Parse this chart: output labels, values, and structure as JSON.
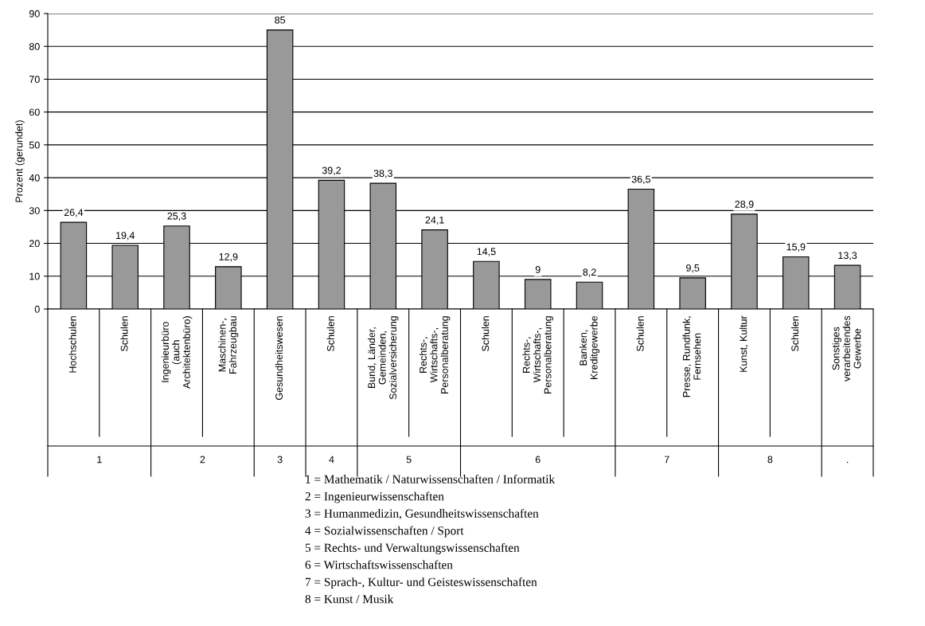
{
  "chart_data": {
    "type": "bar",
    "ylabel": "Prozent (gerundet)",
    "categories": [
      "Hochschulen",
      "Schulen",
      "Ingenieurbüro\n(auch\nArchitektenbüro)",
      "Maschinen-,\nFahrzeugbau",
      "Gesundheitswesen",
      "Schulen",
      "Bund, Länder,\nGemeinden,\nSozialversicherung",
      "Rechts-,\nWirtschafts-,\nPersonalberatung",
      "Schulen",
      "Rechts-,\nWirtschafts-,\nPersonalberatung",
      "Banken,\nKreditgewerbe",
      "Schulen",
      "Presse, Rundfunk,\nFernsehen",
      "Kunst, Kultur",
      "Schulen",
      "Sonstiges\nverarbeitendes\nGewerbe"
    ],
    "values": [
      26.4,
      19.4,
      25.3,
      12.9,
      85,
      39.2,
      38.3,
      24.1,
      14.5,
      9,
      8.2,
      36.5,
      9.5,
      28.9,
      15.9,
      13.3
    ],
    "value_labels": [
      "26,4",
      "19,4",
      "25,3",
      "12,9",
      "85",
      "39,2",
      "38,3",
      "24,1",
      "14,5",
      "9",
      "8,2",
      "36,5",
      "9,5",
      "28,9",
      "15,9",
      "13,3"
    ],
    "color": "#999999",
    "ylim": [
      0,
      90
    ],
    "yticks": [
      0,
      10,
      20,
      30,
      40,
      50,
      60,
      70,
      80,
      90
    ],
    "grid": "y",
    "annotations": [
      "1",
      "2",
      "3",
      "4",
      "5",
      "6",
      "7",
      "8",
      ".",
      "1 = Mathematik / Naturwissenschaften / Informatik",
      "2 = Ingenieurwissenschaften",
      "3 = Humanmedizin, Gesundheitswissenschaften",
      "4 = Sozialwissenschaften / Sport",
      "5 = Rechts- und Verwaltungswissenschaften",
      "6 = Wirtschaftswissenschaften",
      "7 = Sprach-, Kultur- und Geisteswissenschaften",
      "8 = Kunst / Musik"
    ]
  }
}
